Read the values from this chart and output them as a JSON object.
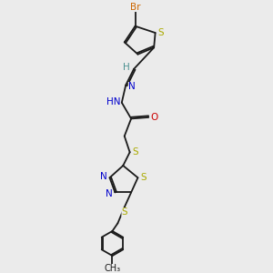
{
  "bg_color": "#ebebeb",
  "bond_color": "#1a1a1a",
  "colors": {
    "Br": "#cc6600",
    "S": "#aaaa00",
    "N": "#0000cc",
    "O": "#cc0000",
    "H": "#4a9090",
    "C": "#1a1a1a"
  },
  "lw": 1.3
}
